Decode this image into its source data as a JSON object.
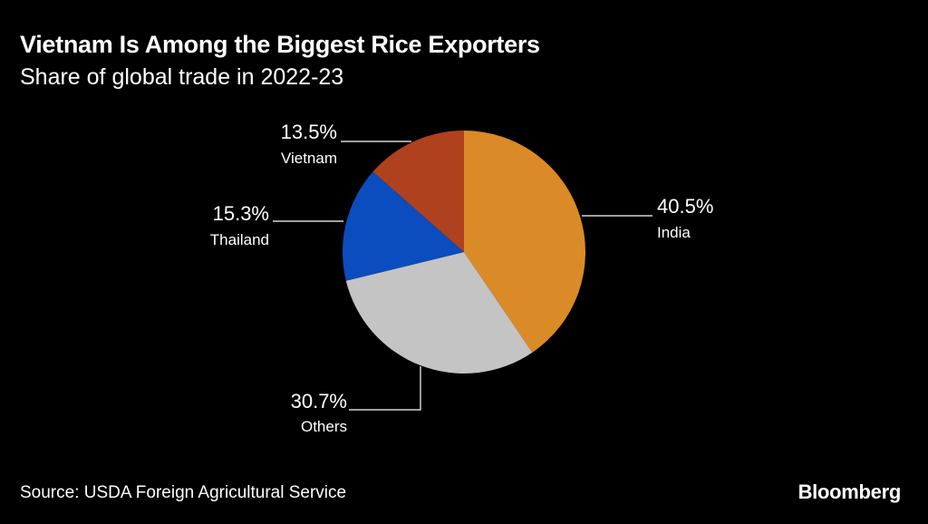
{
  "header": {
    "title": "Vietnam Is Among the Biggest Rice Exporters",
    "subtitle": "Share of global trade in 2022-23"
  },
  "footer": {
    "source": "Source: USDA Foreign Agricultural Service",
    "brand": "Bloomberg"
  },
  "chart_data": {
    "type": "pie",
    "title": "Vietnam Is Among the Biggest Rice Exporters",
    "subtitle": "Share of global trade in 2022-23",
    "start_angle_deg": 0,
    "direction": "clockwise",
    "slices": [
      {
        "name": "India",
        "value": 40.5,
        "label": "40.5%",
        "color": "#DB8A28"
      },
      {
        "name": "Others",
        "value": 30.7,
        "label": "30.7%",
        "color": "#C4C4C4"
      },
      {
        "name": "Thailand",
        "value": 15.3,
        "label": "15.3%",
        "color": "#0B4DBE"
      },
      {
        "name": "Vietnam",
        "value": 13.5,
        "label": "13.5%",
        "color": "#B0411E"
      }
    ]
  }
}
